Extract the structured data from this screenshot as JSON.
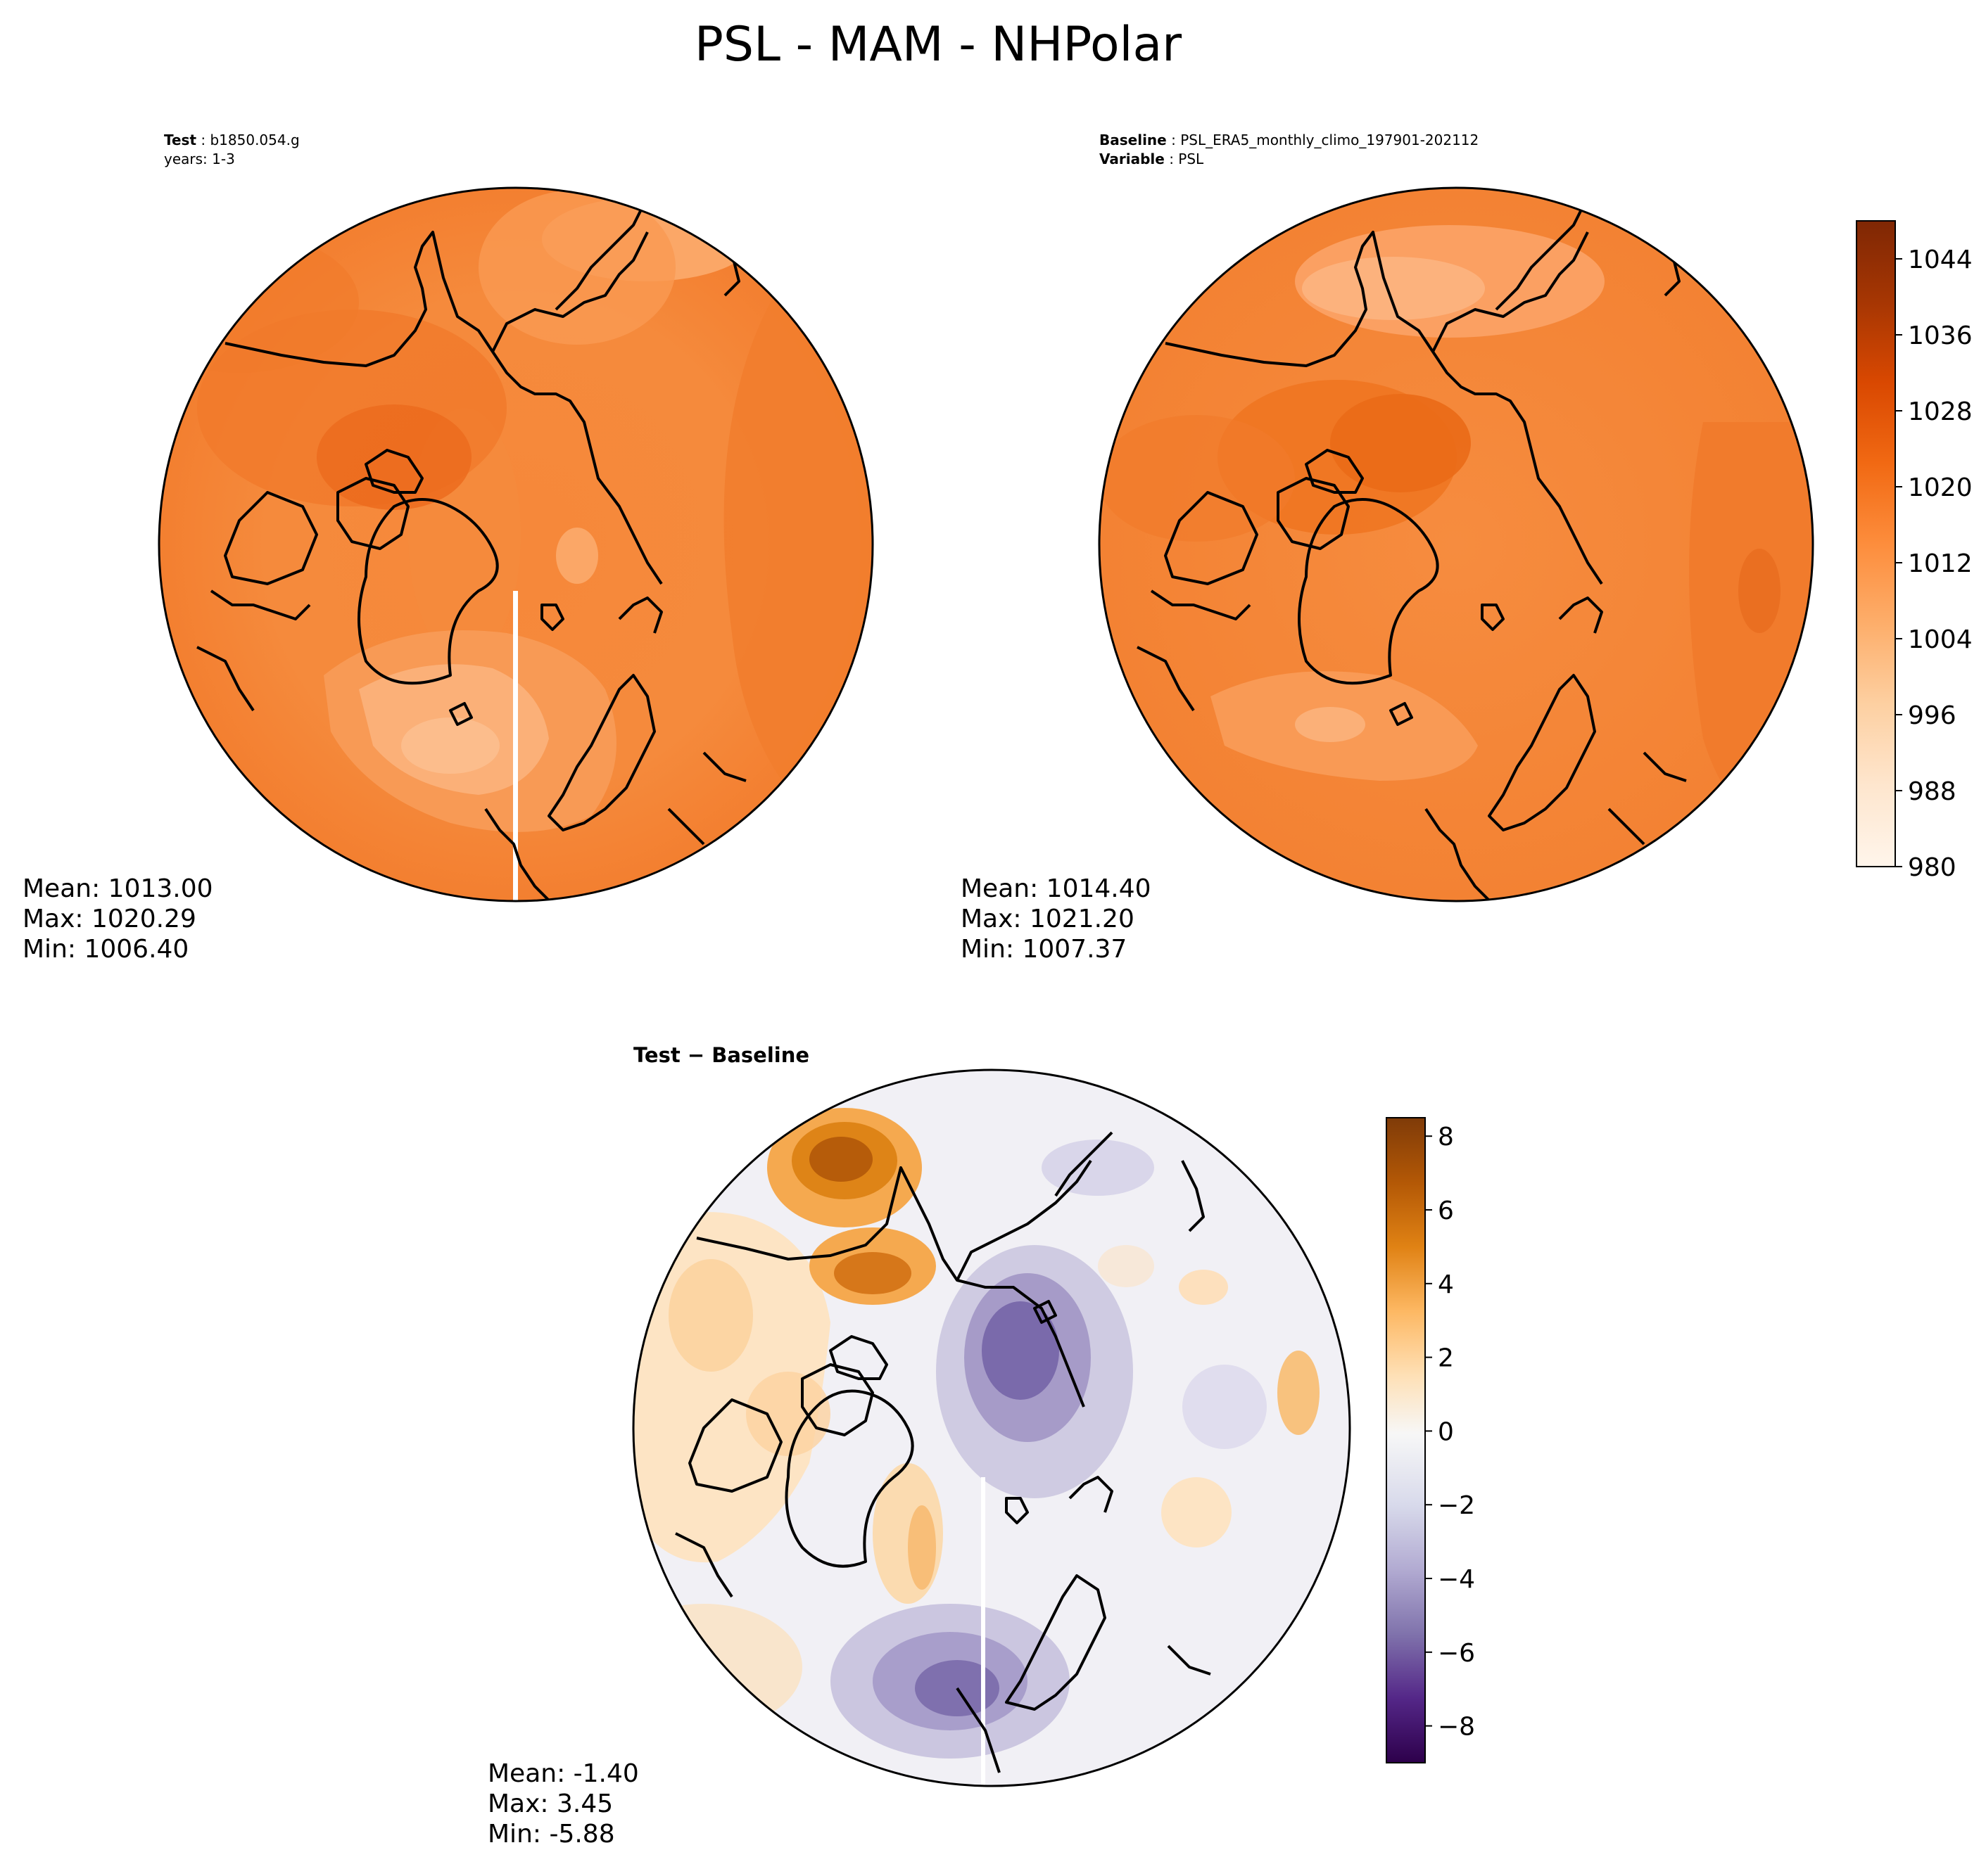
{
  "figure": {
    "title": "PSL - MAM - NHPolar"
  },
  "chart_data": [
    {
      "type": "heatmap",
      "projection": "north polar stereographic",
      "title_lines": [
        {
          "bold": "Test",
          "text": "b1850.054.g"
        },
        {
          "bold": "",
          "text": "years: 1-3"
        }
      ],
      "stats": [
        "Mean: 1013.00",
        "Max: 1020.29",
        "Min: 1006.40"
      ],
      "colormap": "Oranges",
      "zlim": [
        980,
        1048
      ]
    },
    {
      "type": "heatmap",
      "projection": "north polar stereographic",
      "title_lines": [
        {
          "bold": "Baseline",
          "text": "PSL_ERA5_monthly_climo_197901-202112"
        },
        {
          "bold": "Variable",
          "text": "PSL"
        }
      ],
      "stats": [
        "Mean: 1014.40",
        "Max: 1021.20",
        "Min: 1007.37"
      ],
      "colormap": "Oranges",
      "zlim": [
        980,
        1048
      ]
    },
    {
      "type": "heatmap",
      "projection": "north polar stereographic",
      "title": "Test − Baseline",
      "stats": [
        "Mean: -1.40",
        "Max:  3.45",
        "Min: -5.88"
      ],
      "colormap": "PuOr_r",
      "zlim": [
        -9,
        8.5
      ]
    }
  ],
  "colorbars": [
    {
      "ticks": [
        980,
        988,
        996,
        1004,
        1012,
        1020,
        1028,
        1036,
        1044
      ],
      "tick_labels": [
        "980",
        "988",
        "996",
        "1004",
        "1012",
        "1020",
        "1028",
        "1036",
        "1044"
      ],
      "range": [
        980,
        1048
      ],
      "colors": [
        "#fff5eb",
        "#fee6ce",
        "#fdd0a2",
        "#fdae6b",
        "#fd8d3c",
        "#f16913",
        "#d94801",
        "#a63603",
        "#7f2704"
      ]
    },
    {
      "ticks": [
        -8,
        -6,
        -4,
        -2,
        0,
        2,
        4,
        6,
        8
      ],
      "tick_labels": [
        "−8",
        "−6",
        "−4",
        "−2",
        "0",
        "2",
        "4",
        "6",
        "8"
      ],
      "range": [
        -9,
        8.5
      ],
      "colors": [
        "#2d004b",
        "#542788",
        "#8073ac",
        "#b2abd2",
        "#d8daeb",
        "#f7f7f7",
        "#fee0b6",
        "#fdb863",
        "#e08214",
        "#b35806",
        "#7f3b08"
      ]
    }
  ]
}
